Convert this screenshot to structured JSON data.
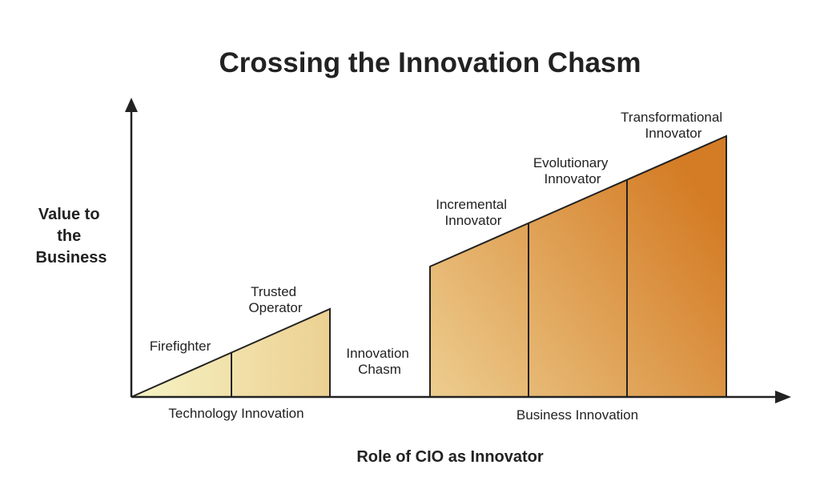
{
  "title": "Crossing the Innovation Chasm",
  "y_axis_title": [
    "Value to",
    "the",
    "Business"
  ],
  "x_axis_title": "Role of CIO as Innovator",
  "section_labels": {
    "technology": "Technology Innovation",
    "business": "Business Innovation"
  },
  "chasm_label": [
    "Innovation",
    "Chasm"
  ],
  "stages": [
    {
      "name": [
        "Firefighter"
      ]
    },
    {
      "name": [
        "Trusted",
        "Operator"
      ]
    },
    {
      "name": [
        "Incremental",
        "Innovator"
      ]
    },
    {
      "name": [
        "Evolutionary",
        "Innovator"
      ]
    },
    {
      "name": [
        "Transformational",
        "Innovator"
      ]
    }
  ],
  "colors": {
    "text": "#222222",
    "axis": "#222222",
    "light_start": "#f6f3c4",
    "light_end": "#ecd092",
    "dark_start": "#edcd8f",
    "dark_end": "#d47c25"
  }
}
